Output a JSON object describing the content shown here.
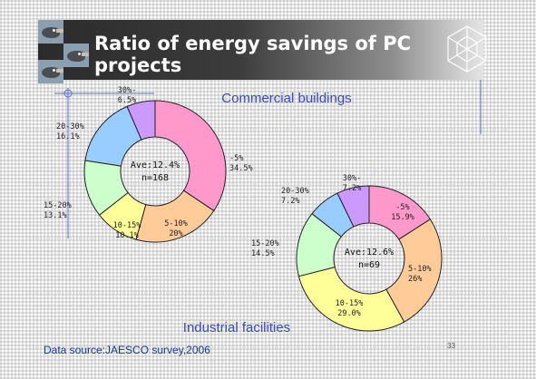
{
  "slide": {
    "title": "Ratio of energy savings of PC projects",
    "source": "Data source:JAESCO survey,2006",
    "page_number": "33",
    "colors": {
      "title_bar_dark": "#2b2b2b",
      "title_text": "#ffffff",
      "source_text": "#1a3a8a"
    },
    "icons": [
      "bird-photo-icon",
      "lattice-logo-icon"
    ]
  },
  "chart_data": [
    {
      "type": "pie",
      "donut": true,
      "title": "Commercial buildings",
      "center_label": "Ave:12.4%",
      "center_n": "n=168",
      "categories": [
        "-5%",
        "5-10%",
        "10-15%",
        "15-20%",
        "20-30%",
        "30%-"
      ],
      "values": [
        34.5,
        20,
        10.1,
        13.1,
        16.1,
        6.5
      ],
      "value_labels": [
        "34.5%",
        "20%",
        "10.1%",
        "13.1%",
        "16.1%",
        "6.5%"
      ],
      "colors": [
        "#ff99cc",
        "#ffcc99",
        "#ffff99",
        "#ccffcc",
        "#99ccff",
        "#cc99ff"
      ]
    },
    {
      "type": "pie",
      "donut": true,
      "title": "Industrial facilities",
      "center_label": "Ave:12.6%",
      "center_n": "n=69",
      "categories": [
        "-5%",
        "5-10%",
        "10-15%",
        "15-20%",
        "20-30%",
        "30%-"
      ],
      "values": [
        15.9,
        26,
        29.0,
        14.5,
        7.2,
        7.2
      ],
      "value_labels": [
        "15.9%",
        "26%",
        "29.0%",
        "14.5%",
        "7.2%",
        "7.2%"
      ],
      "colors": [
        "#ff99cc",
        "#ffcc99",
        "#ffff99",
        "#ccffcc",
        "#99ccff",
        "#cc99ff"
      ]
    }
  ]
}
